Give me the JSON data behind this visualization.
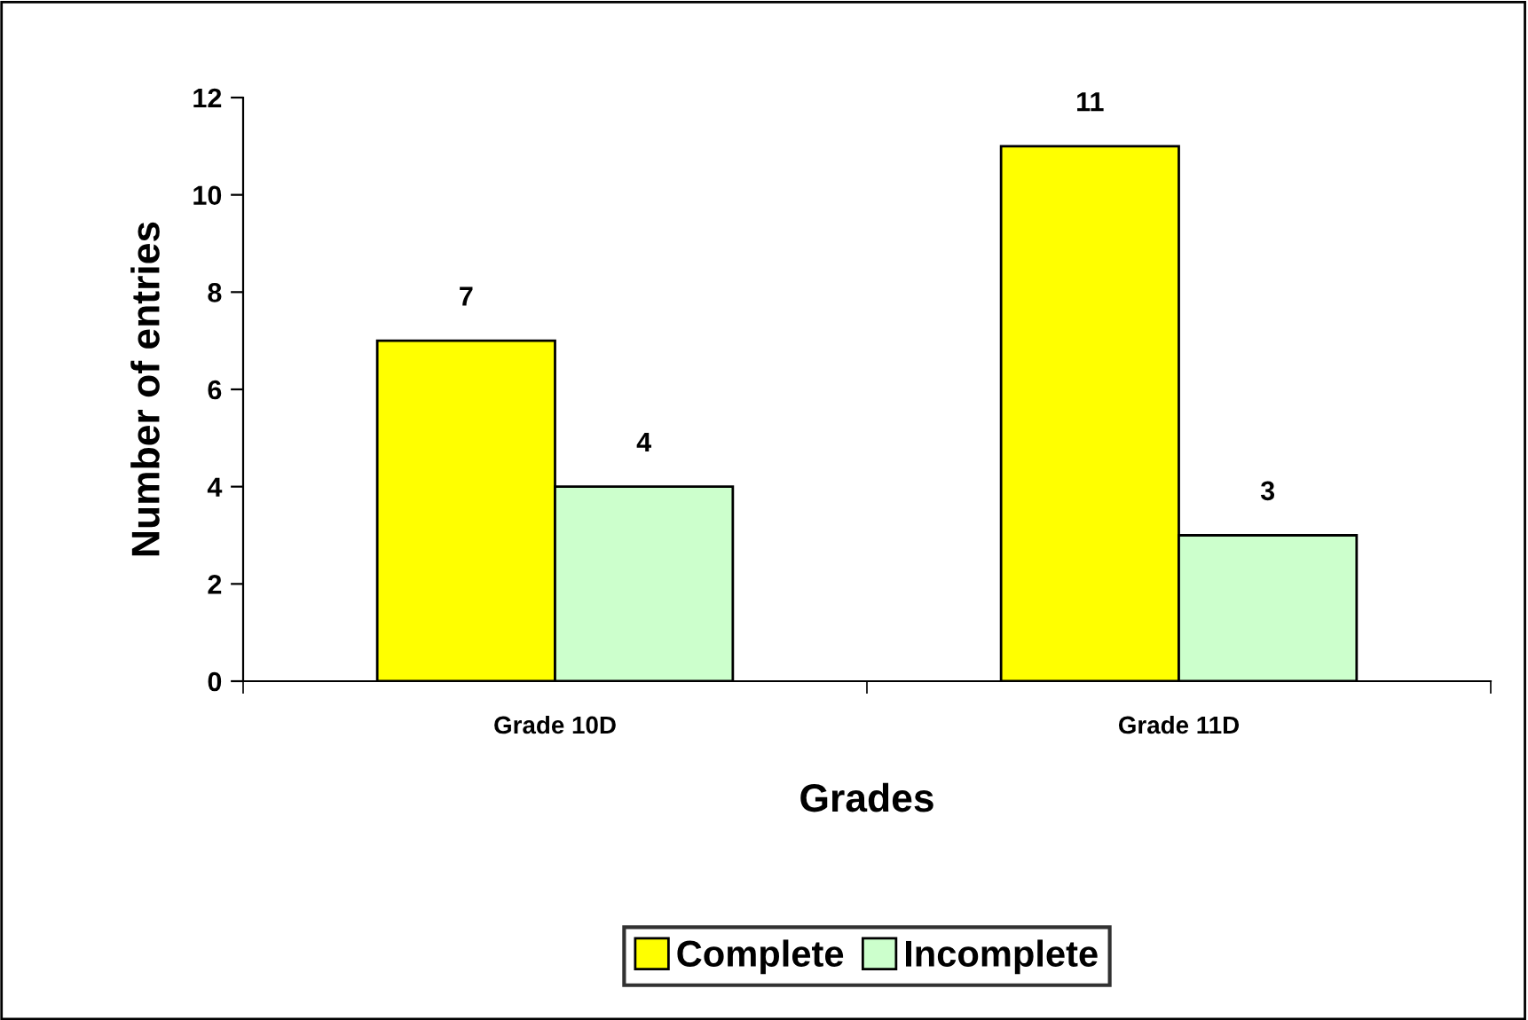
{
  "chart_data": {
    "type": "bar",
    "xlabel": "Grades",
    "ylabel": "Number of entries",
    "categories": [
      "Grade 10D",
      "Grade 11D"
    ],
    "series": [
      {
        "name": "Complete",
        "color": "#ffff00",
        "values": [
          7,
          11
        ]
      },
      {
        "name": "Incomplete",
        "color": "#ccffcc",
        "values": [
          4,
          3
        ]
      }
    ],
    "ylim": [
      0,
      12
    ],
    "yticks": [
      0,
      2,
      4,
      6,
      8,
      10,
      12
    ],
    "data_labels": true,
    "legend": "bottom",
    "grid": false
  }
}
